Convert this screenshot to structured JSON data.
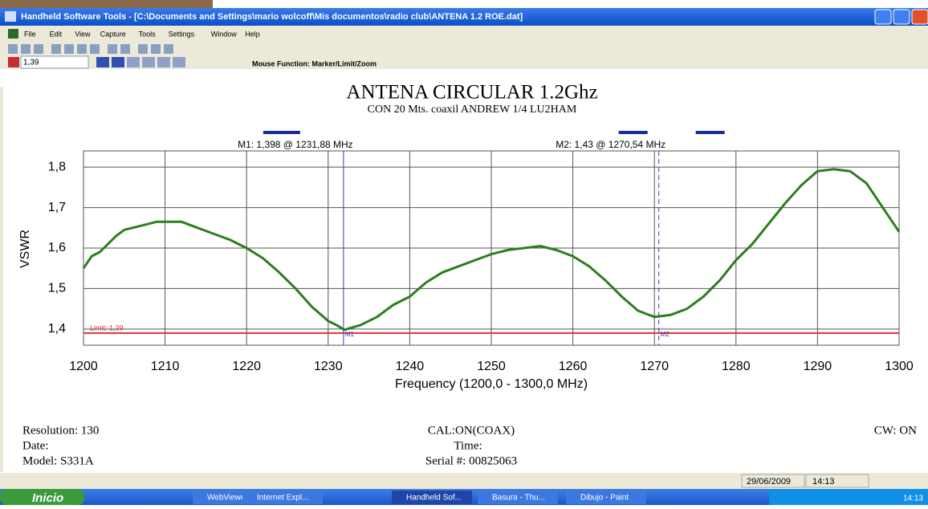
{
  "window": {
    "title": "Handheld Software Tools - [C:\\Documents and Settings\\mario wolcoff\\Mis documentos\\radio club\\ANTENA 1.2 ROE.dat]"
  },
  "menu": [
    "File",
    "Edit",
    "View",
    "Capture",
    "Tools",
    "Settings",
    "Window",
    "Help"
  ],
  "toolbar": {
    "limit_field": "1,39",
    "mouse_function": "Mouse Function: Marker/Limit/Zoom"
  },
  "chart_data": {
    "type": "line",
    "title": "ANTENA CIRCULAR 1.2Ghz",
    "subtitle": "CON 20 Mts. coaxil  ANDREW 1/4  LU2HAM",
    "x_label": "Frequency (1200,0 - 1300,0 MHz)",
    "y_label": "VSWR",
    "color": "#2e7d1f",
    "grid": true,
    "x": [
      1200,
      1201,
      1202,
      1204,
      1205,
      1207,
      1209,
      1212,
      1214,
      1216,
      1218,
      1220,
      1222,
      1224,
      1226,
      1228,
      1230,
      1231,
      1232,
      1234,
      1236,
      1238,
      1240,
      1242,
      1244,
      1246,
      1248,
      1250,
      1252,
      1254,
      1256,
      1258,
      1260,
      1262,
      1264,
      1266,
      1268,
      1270,
      1272,
      1274,
      1276,
      1278,
      1280,
      1282,
      1284,
      1286,
      1288,
      1290,
      1292,
      1294,
      1296,
      1298,
      1300
    ],
    "values": [
      1.55,
      1.58,
      1.59,
      1.63,
      1.645,
      1.655,
      1.665,
      1.665,
      1.65,
      1.635,
      1.62,
      1.6,
      1.575,
      1.54,
      1.5,
      1.455,
      1.42,
      1.41,
      1.398,
      1.41,
      1.43,
      1.46,
      1.48,
      1.515,
      1.54,
      1.555,
      1.57,
      1.585,
      1.595,
      1.6,
      1.605,
      1.595,
      1.58,
      1.555,
      1.52,
      1.48,
      1.445,
      1.43,
      1.435,
      1.45,
      1.48,
      1.52,
      1.57,
      1.61,
      1.66,
      1.71,
      1.755,
      1.79,
      1.795,
      1.79,
      1.76,
      1.7,
      1.64
    ],
    "xlim": [
      1200,
      1300
    ],
    "ylim": [
      1.36,
      1.84
    ],
    "xticks": [
      1200,
      1210,
      1220,
      1230,
      1240,
      1250,
      1260,
      1270,
      1280,
      1290,
      1300
    ],
    "yticks": [
      {
        "value": 1.4,
        "label": "1,4"
      },
      {
        "value": 1.5,
        "label": "1,5"
      },
      {
        "value": 1.6,
        "label": "1,6"
      },
      {
        "value": 1.7,
        "label": "1,7"
      },
      {
        "value": 1.8,
        "label": "1,8"
      }
    ],
    "limit": {
      "value": 1.39,
      "label": "Limit: 1,39",
      "color": "#e0303a"
    },
    "markers": [
      {
        "tag": "M1",
        "label": "M1: 1,398 @ 1231,88 MHz",
        "x": 1231.88
      },
      {
        "tag": "M2",
        "label": "M2: 1,43  @ 1270,54 MHz",
        "x": 1270.54
      }
    ]
  },
  "footer": {
    "resolution": "Resolution:  130",
    "date": "Date:",
    "model": "Model: S331A",
    "cal": "CAL:ON(COAX)",
    "time": "Time:",
    "serial": "Serial #: 00825063",
    "cw": "CW: ON"
  },
  "status": {
    "date": "29/06/2009",
    "time": "14:13"
  },
  "taskbar": {
    "start": "Inicio",
    "items": [
      "WebViewer -...",
      "Internet Expl...",
      "Handheld Sof...",
      "Basura - Thu...",
      "Dibujo - Paint"
    ],
    "clock": "14:13"
  }
}
